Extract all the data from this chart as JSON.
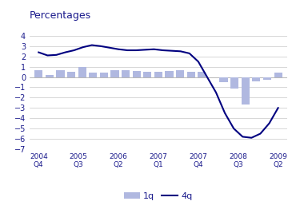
{
  "title": "Percentages",
  "bar_color": "#b0b8e0",
  "line_color": "#000080",
  "ylim": [
    -7,
    5
  ],
  "yticks": [
    -7,
    -6,
    -5,
    -4,
    -3,
    -2,
    -1,
    0,
    1,
    2,
    3,
    4
  ],
  "xlabel_pairs": [
    [
      "2004",
      "Q4"
    ],
    [
      "2005",
      "Q3"
    ],
    [
      "2006",
      "Q2"
    ],
    [
      "2007",
      "Q1"
    ],
    [
      "2007",
      "Q4"
    ],
    [
      "2008",
      "Q3"
    ],
    [
      "2009",
      "Q2"
    ]
  ],
  "bar_values": [
    0.7,
    0.2,
    0.7,
    0.5,
    1.0,
    0.4,
    0.4,
    0.7,
    0.7,
    0.6,
    0.5,
    0.5,
    0.6,
    0.7,
    0.5,
    0.5,
    0.0,
    -0.5,
    -1.1,
    -2.7,
    -0.4,
    -0.3,
    0.4
  ],
  "line_values": [
    2.4,
    2.1,
    2.15,
    2.4,
    2.6,
    2.9,
    3.1,
    3.0,
    2.85,
    2.7,
    2.6,
    2.6,
    2.65,
    2.7,
    2.6,
    2.55,
    2.5,
    2.3,
    1.5,
    0.0,
    -1.5,
    -3.5,
    -5.0,
    -5.8,
    -5.9,
    -5.5,
    -4.5,
    -3.0
  ],
  "background_color": "#ffffff",
  "grid_color": "#c8c8c8",
  "legend_bar_label": "1q",
  "legend_line_label": "4q",
  "title_color": "#1a1a8c",
  "axis_text_color": "#1a1a8c"
}
